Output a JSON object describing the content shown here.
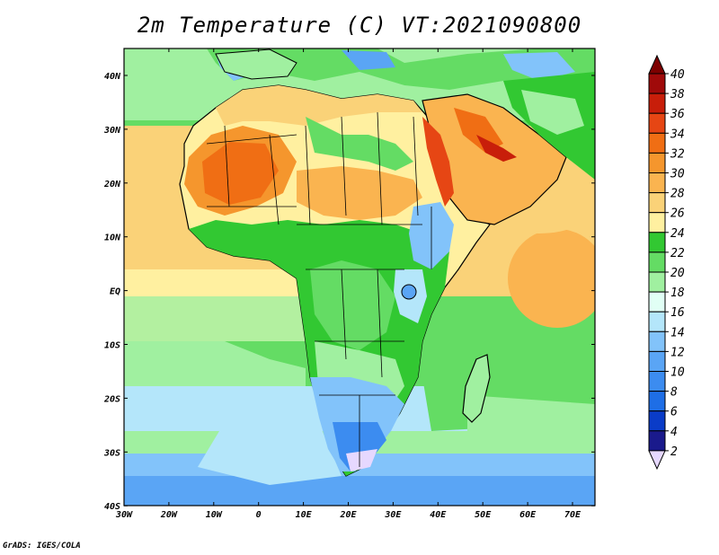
{
  "title": "2m Temperature (C) VT:2021090800",
  "credit": "GrADS: IGES/COLA",
  "map": {
    "lon_range": [
      -30,
      75
    ],
    "lat_range": [
      -40,
      45
    ],
    "lat_ticks": [
      "40N",
      "30N",
      "20N",
      "10N",
      "EQ",
      "10S",
      "20S",
      "30S",
      "40S"
    ],
    "lon_ticks": [
      "30W",
      "20W",
      "10W",
      "0",
      "10E",
      "20E",
      "30E",
      "40E",
      "50E",
      "60E",
      "70E"
    ]
  },
  "colorbar": {
    "levels": [
      "2",
      "4",
      "6",
      "8",
      "10",
      "12",
      "14",
      "16",
      "18",
      "20",
      "22",
      "24",
      "26",
      "28",
      "30",
      "32",
      "34",
      "36",
      "38",
      "40"
    ],
    "colors": [
      "#e6d8ff",
      "#1a1a8c",
      "#0a3cc8",
      "#1e6ee6",
      "#3c8cf0",
      "#5aa5f5",
      "#82c3fa",
      "#b4e6fa",
      "#e1fff5",
      "#a0f0a0",
      "#64dc64",
      "#32c832",
      "#fff0a0",
      "#fad278",
      "#fab450",
      "#f5962d",
      "#f06e14",
      "#e64614",
      "#c81e0a",
      "#a00a0a",
      "#7d0000"
    ]
  },
  "colors": {
    "ocean_warm": "#fad278",
    "ocean_mid": "#a0f0a0",
    "ocean_cool": "#b4e6fa",
    "land_hot": "#f06e14",
    "land_warm": "#fff0a0",
    "land_green": "#64dc64",
    "highland": "#82c3fa"
  }
}
